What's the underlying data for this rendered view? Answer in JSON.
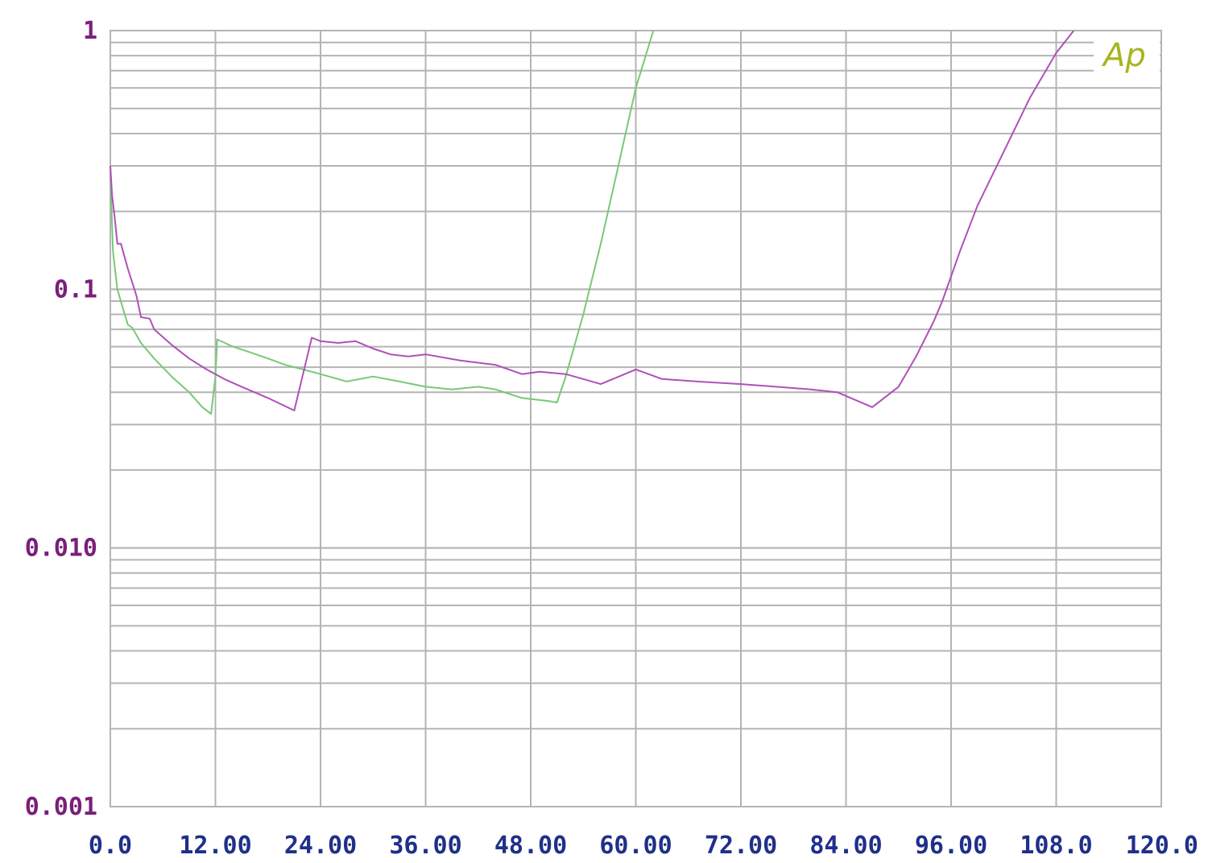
{
  "logo": "Ap",
  "colors": {
    "background": "#ffffff",
    "grid": "#b4b4b4",
    "y_tick_labels": "#7a1f7a",
    "x_tick_labels": "#1f2f8a",
    "logo": "#a7b41e",
    "series_green": "#78c878",
    "series_purple": "#b050b8"
  },
  "chart_data": {
    "type": "line",
    "xlim": [
      0,
      120
    ],
    "ylim": [
      0.001,
      1
    ],
    "yscale": "log",
    "grid": true,
    "title": "",
    "xlabel": "",
    "ylabel": "",
    "x_tick_labels": [
      "0.0",
      "12.00",
      "24.00",
      "36.00",
      "48.00",
      "60.00",
      "72.00",
      "84.00",
      "96.00",
      "108.0",
      "120.0"
    ],
    "y_tick_labels": [
      {
        "value": 1,
        "label": "1"
      },
      {
        "value": 0.1,
        "label": "0.1"
      },
      {
        "value": 0.01,
        "label": "0.010"
      },
      {
        "value": 0.001,
        "label": "0.001"
      }
    ],
    "series": [
      {
        "color": "#78c878",
        "points": [
          [
            0.0,
            0.28
          ],
          [
            0.3,
            0.14
          ],
          [
            0.8,
            0.1
          ],
          [
            1.5,
            0.083
          ],
          [
            2.0,
            0.073
          ],
          [
            2.5,
            0.071
          ],
          [
            3.5,
            0.062
          ],
          [
            5.0,
            0.054
          ],
          [
            7.0,
            0.046
          ],
          [
            9.0,
            0.04
          ],
          [
            10.5,
            0.035
          ],
          [
            11.5,
            0.033
          ],
          [
            12.0,
            0.046
          ],
          [
            12.2,
            0.064
          ],
          [
            14.0,
            0.06
          ],
          [
            16.0,
            0.057
          ],
          [
            18.0,
            0.054
          ],
          [
            20.0,
            0.051
          ],
          [
            22.0,
            0.049
          ],
          [
            24.0,
            0.047
          ],
          [
            27.0,
            0.044
          ],
          [
            30.0,
            0.046
          ],
          [
            33.0,
            0.044
          ],
          [
            36.0,
            0.042
          ],
          [
            39.0,
            0.041
          ],
          [
            42.0,
            0.042
          ],
          [
            44.0,
            0.041
          ],
          [
            47.0,
            0.038
          ],
          [
            50.0,
            0.037
          ],
          [
            51.0,
            0.0365
          ],
          [
            52.0,
            0.046
          ],
          [
            54.0,
            0.08
          ],
          [
            56.0,
            0.15
          ],
          [
            58.0,
            0.3
          ],
          [
            60.0,
            0.6
          ],
          [
            62.0,
            1.0
          ]
        ]
      },
      {
        "color": "#b050b8",
        "points": [
          [
            0.0,
            0.3
          ],
          [
            0.2,
            0.23
          ],
          [
            0.5,
            0.19
          ],
          [
            0.8,
            0.15
          ],
          [
            1.2,
            0.15
          ],
          [
            2.0,
            0.12
          ],
          [
            3.0,
            0.094
          ],
          [
            3.5,
            0.078
          ],
          [
            4.5,
            0.077
          ],
          [
            5.0,
            0.07
          ],
          [
            7.0,
            0.061
          ],
          [
            9.0,
            0.054
          ],
          [
            11.0,
            0.049
          ],
          [
            13.0,
            0.045
          ],
          [
            15.0,
            0.042
          ],
          [
            18.0,
            0.038
          ],
          [
            21.0,
            0.034
          ],
          [
            23.0,
            0.065
          ],
          [
            24.0,
            0.063
          ],
          [
            26.0,
            0.062
          ],
          [
            28.0,
            0.063
          ],
          [
            30.0,
            0.059
          ],
          [
            32.0,
            0.056
          ],
          [
            34.0,
            0.055
          ],
          [
            36.0,
            0.056
          ],
          [
            40.0,
            0.053
          ],
          [
            44.0,
            0.051
          ],
          [
            47.0,
            0.047
          ],
          [
            49.0,
            0.048
          ],
          [
            52.0,
            0.047
          ],
          [
            56.0,
            0.043
          ],
          [
            60.0,
            0.049
          ],
          [
            63.0,
            0.045
          ],
          [
            67.0,
            0.044
          ],
          [
            72.0,
            0.043
          ],
          [
            76.0,
            0.042
          ],
          [
            80.0,
            0.041
          ],
          [
            83.0,
            0.04
          ],
          [
            87.0,
            0.035
          ],
          [
            90.0,
            0.042
          ],
          [
            92.0,
            0.055
          ],
          [
            94.0,
            0.075
          ],
          [
            95.0,
            0.09
          ],
          [
            97.0,
            0.14
          ],
          [
            99.0,
            0.21
          ],
          [
            102.0,
            0.34
          ],
          [
            105.0,
            0.55
          ],
          [
            108.0,
            0.82
          ],
          [
            110.0,
            1.0
          ]
        ]
      }
    ]
  }
}
